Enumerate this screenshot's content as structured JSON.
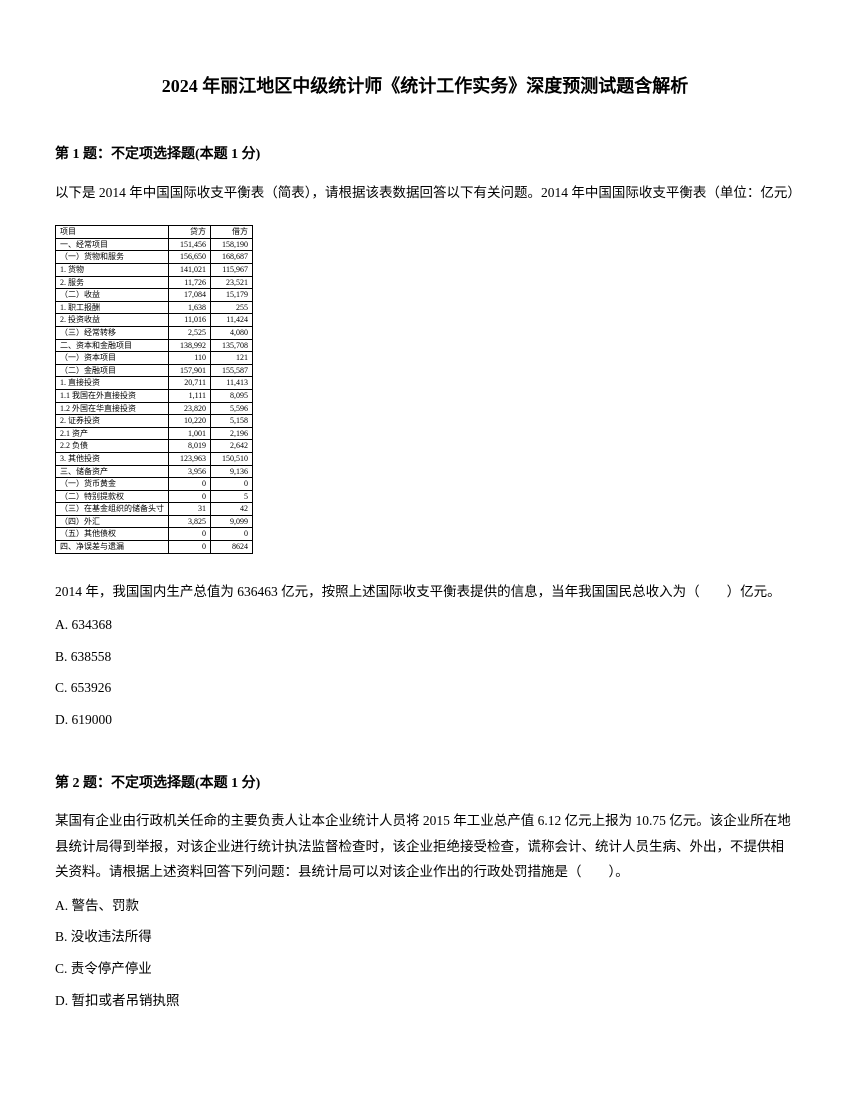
{
  "title": "2024 年丽江地区中级统计师《统计工作实务》深度预测试题含解析",
  "q1": {
    "header": "第 1 题：不定项选择题(本题 1 分)",
    "intro": "以下是 2014 年中国国际收支平衡表（简表），请根据该表数据回答以下有关问题。2014 年中国国际收支平衡表（单位：亿元）",
    "question": "2014 年，我国国内生产总值为 636463 亿元，按照上述国际收支平衡表提供的信息，当年我国国民总收入为（　　）亿元。",
    "options": {
      "A": "A. 634368",
      "B": "B. 638558",
      "C": "C. 653926",
      "D": "D. 619000"
    },
    "table": {
      "header": [
        "项目",
        "贷方",
        "借方"
      ],
      "rows": [
        [
          "一、经常项目",
          "151,456",
          "158,190"
        ],
        [
          "（一）货物和服务",
          "156,650",
          "168,687"
        ],
        [
          "1. 货物",
          "141,021",
          "115,967"
        ],
        [
          "2. 服务",
          "11,726",
          "23,521"
        ],
        [
          "（二）收益",
          "17,084",
          "15,179"
        ],
        [
          "1. 职工报酬",
          "1,638",
          "255"
        ],
        [
          "2. 投资收益",
          "11,016",
          "11,424"
        ],
        [
          "（三）经常转移",
          "2,525",
          "4,080"
        ],
        [
          "二、资本和金融项目",
          "138,992",
          "135,708"
        ],
        [
          "（一）资本项目",
          "110",
          "121"
        ],
        [
          "（二）金融项目",
          "157,901",
          "155,587"
        ],
        [
          "1. 直接投资",
          "20,711",
          "11,413"
        ],
        [
          "1.1 我国在外直接投资",
          "1,111",
          "8,095"
        ],
        [
          "1.2 外国在华直接投资",
          "23,820",
          "5,596"
        ],
        [
          "2. 证券投资",
          "10,220",
          "5,158"
        ],
        [
          "2.1 资产",
          "1,001",
          "2,196"
        ],
        [
          "2.2 负债",
          "8,019",
          "2,642"
        ],
        [
          "3. 其他投资",
          "123,963",
          "150,510"
        ],
        [
          "三、储备资产",
          "3,956",
          "9,136"
        ],
        [
          "（一）货币黄金",
          "0",
          "0"
        ],
        [
          "（二）特别提款权",
          "0",
          "5"
        ],
        [
          "（三）在基金组织的储备头寸",
          "31",
          "42"
        ],
        [
          "（四）外汇",
          "3,825",
          "9,099"
        ],
        [
          "（五）其他债权",
          "0",
          "0"
        ],
        [
          "四、净误差与遗漏",
          "0",
          "8624"
        ]
      ]
    }
  },
  "q2": {
    "header": "第 2 题：不定项选择题(本题 1 分)",
    "question": "某国有企业由行政机关任命的主要负责人让本企业统计人员将 2015 年工业总产值 6.12 亿元上报为 10.75 亿元。该企业所在地县统计局得到举报，对该企业进行统计执法监督检查时，该企业拒绝接受检查，谎称会计、统计人员生病、外出，不提供相关资料。请根据上述资料回答下列问题：县统计局可以对该企业作出的行政处罚措施是（　　）。",
    "options": {
      "A": "A. 警告、罚款",
      "B": "B. 没收违法所得",
      "C": "C. 责令停产停业",
      "D": "D. 暂扣或者吊销执照"
    }
  }
}
